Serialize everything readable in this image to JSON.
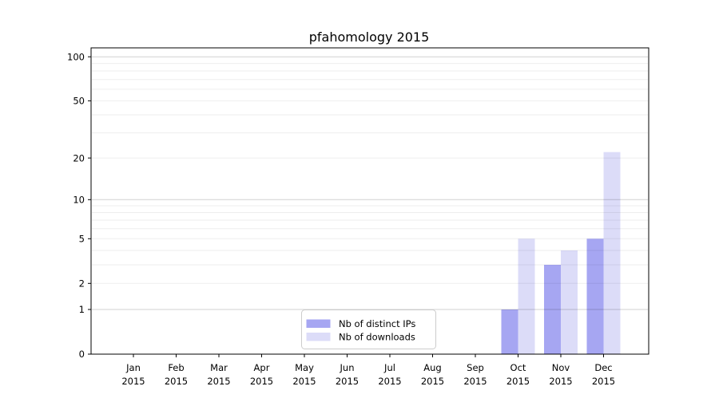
{
  "chart_data": {
    "type": "bar",
    "title": "pfahomology 2015",
    "categories": [
      "Jan",
      "Feb",
      "Mar",
      "Apr",
      "May",
      "Jun",
      "Jul",
      "Aug",
      "Sep",
      "Oct",
      "Nov",
      "Dec"
    ],
    "category_year": "2015",
    "series": [
      {
        "name": "Nb of distinct IPs",
        "color": "#a6a6f2",
        "values": [
          0,
          0,
          0,
          0,
          0,
          0,
          0,
          0,
          0,
          1,
          3,
          5
        ]
      },
      {
        "name": "Nb of downloads",
        "color": "#dcdcf8",
        "values": [
          0,
          0,
          0,
          0,
          0,
          0,
          0,
          0,
          0,
          5,
          4,
          22
        ]
      }
    ],
    "yscale": "log1p",
    "ylim": [
      0,
      115
    ],
    "yticks": [
      0,
      1,
      2,
      5,
      10,
      20,
      50,
      100
    ],
    "grid": {
      "major_lines": [
        1,
        10,
        100
      ],
      "minor_lines": [
        2,
        3,
        4,
        5,
        6,
        7,
        8,
        9,
        20,
        30,
        40,
        50,
        60,
        70,
        80,
        90
      ]
    },
    "legend_position": "lower center",
    "frame": true
  }
}
